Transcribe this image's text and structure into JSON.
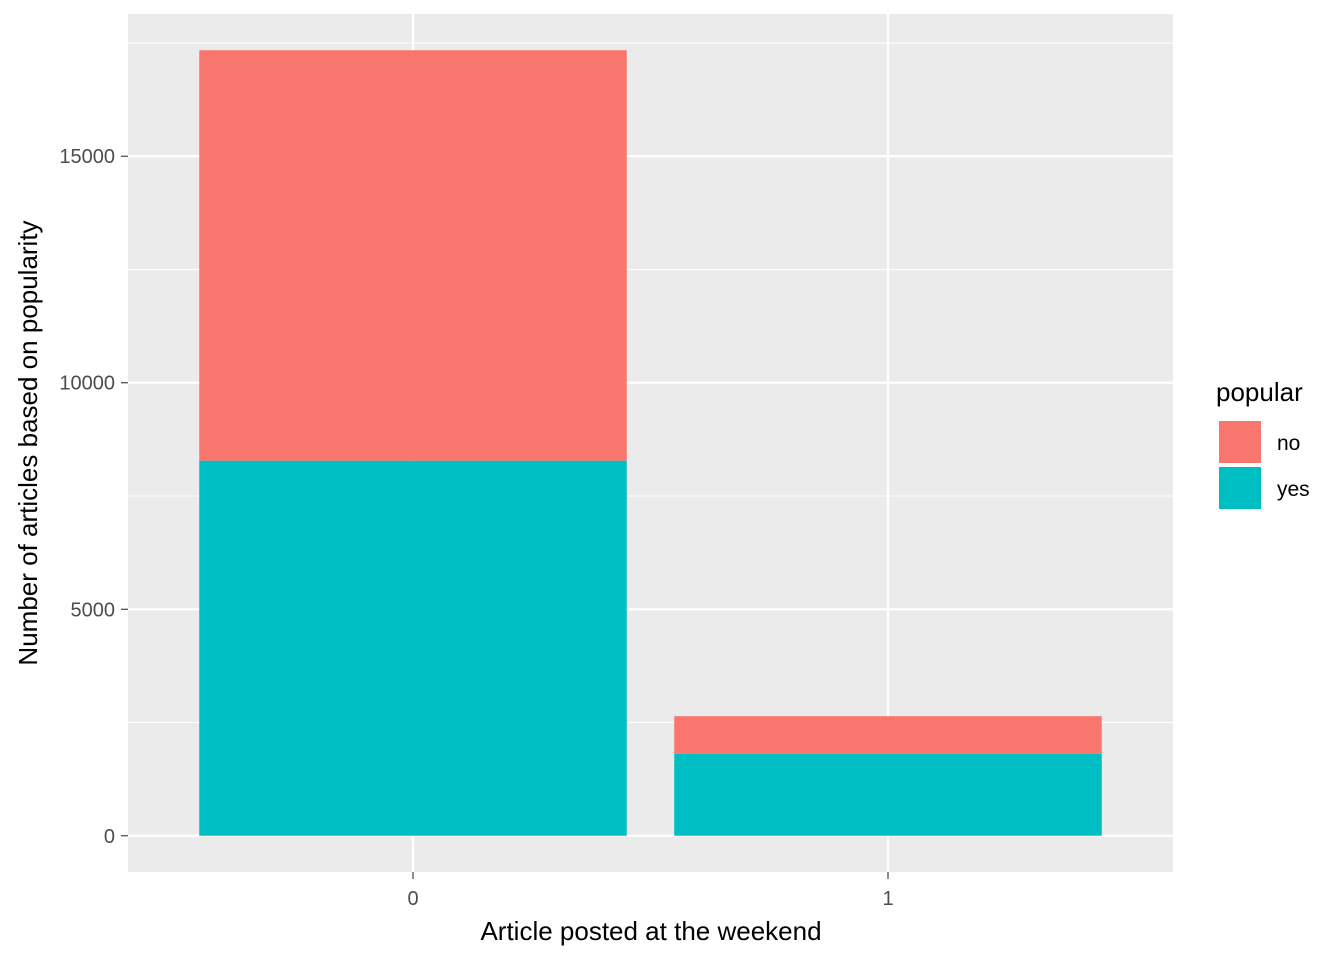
{
  "chart_data": {
    "type": "bar",
    "stacked": true,
    "categories": [
      "0",
      "1"
    ],
    "series": [
      {
        "name": "no",
        "values": [
          9060,
          830
        ],
        "color": "#F8766D"
      },
      {
        "name": "yes",
        "values": [
          8280,
          1810
        ],
        "color": "#00BFC4"
      }
    ],
    "title": "",
    "xlabel": "Article posted at the weekend",
    "ylabel": "Number of articles based on popularity",
    "ylim": [
      -800,
      18140
    ],
    "yticks": [
      0,
      5000,
      10000,
      15000
    ],
    "legend_title": "popular",
    "legend_position": "right",
    "grid": true,
    "panel_background": "#EBEBEB",
    "grid_color": "#FFFFFF"
  }
}
